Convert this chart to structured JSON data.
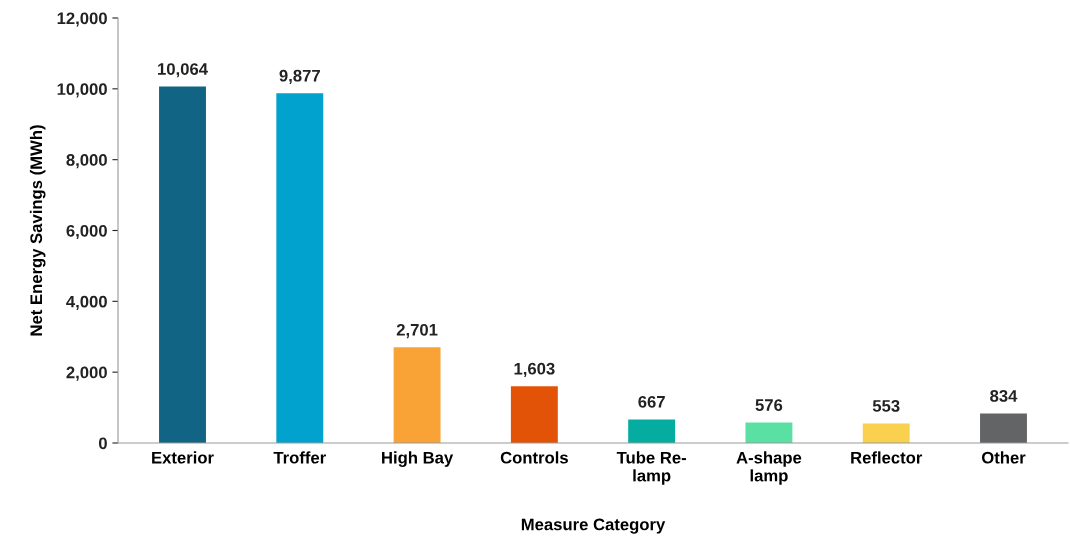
{
  "chart_data": {
    "type": "bar",
    "xlabel": "Measure Category",
    "ylabel": "Net Energy Savings (MWh)",
    "categories": [
      "Exterior",
      "Troffer",
      "High Bay",
      "Controls",
      "Tube Re-\nlamp",
      "A-shape\nlamp",
      "Reflector",
      "Other"
    ],
    "values": [
      10064,
      9877,
      2701,
      1603,
      667,
      576,
      553,
      834
    ],
    "colors": [
      "#126485",
      "#02a2ce",
      "#f9a336",
      "#e25307",
      "#04ad9f",
      "#5ae0a3",
      "#fad14e",
      "#636466"
    ],
    "value_labels": [
      "10,064",
      "9,877",
      "2,701",
      "1,603",
      "667",
      "576",
      "553",
      "834"
    ],
    "ylim": [
      0,
      12000
    ],
    "yticks": [
      0,
      {
        "value": 2000,
        "label": "2,000"
      },
      {
        "value": 4000,
        "label": "4,000"
      },
      {
        "value": 6000,
        "label": "6,000"
      },
      {
        "value": 8000,
        "label": "8,000"
      },
      {
        "value": 10000,
        "label": "10,000"
      },
      {
        "value": 12000,
        "label": "12,000"
      }
    ],
    "grid": false
  }
}
